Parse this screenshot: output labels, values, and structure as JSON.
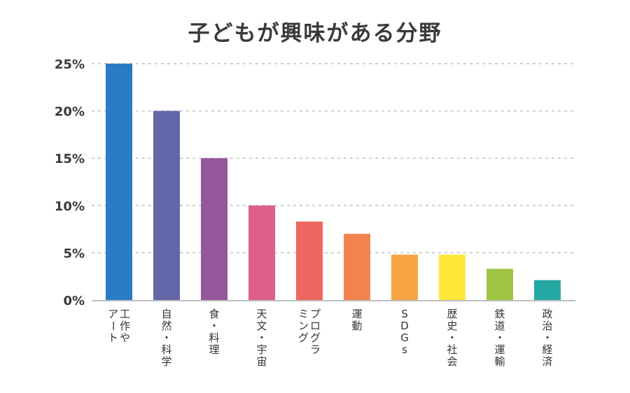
{
  "chart_data": {
    "type": "bar",
    "title": "子どもが興味がある分野",
    "xlabel": "",
    "ylabel": "",
    "ylim": [
      0,
      25
    ],
    "yticks": [
      0,
      5,
      10,
      15,
      20,
      25
    ],
    "ytick_labels": [
      "0%",
      "5%",
      "10%",
      "15%",
      "20%",
      "25%"
    ],
    "grid": true,
    "categories": [
      [
        "工作や",
        "アート"
      ],
      [
        "自然・科学"
      ],
      [
        "食・料理"
      ],
      [
        "天文・宇宙"
      ],
      [
        "プログラ",
        "ミング"
      ],
      [
        "運動"
      ],
      [
        "SDGs"
      ],
      [
        "歴史・社会"
      ],
      [
        "鉄道・運輸"
      ],
      [
        "政治・経済"
      ]
    ],
    "values": [
      25,
      20,
      15,
      10,
      8.3,
      7,
      4.8,
      4.8,
      3.3,
      2.1
    ],
    "colors": [
      "#2a7bc4",
      "#6367a8",
      "#93579a",
      "#de5f8c",
      "#ee6860",
      "#f2834f",
      "#f8a444",
      "#ffe83a",
      "#9ec643",
      "#25a8a3"
    ],
    "grid_color": "#cfcfcf",
    "axis_color": "#bfbfbf"
  }
}
